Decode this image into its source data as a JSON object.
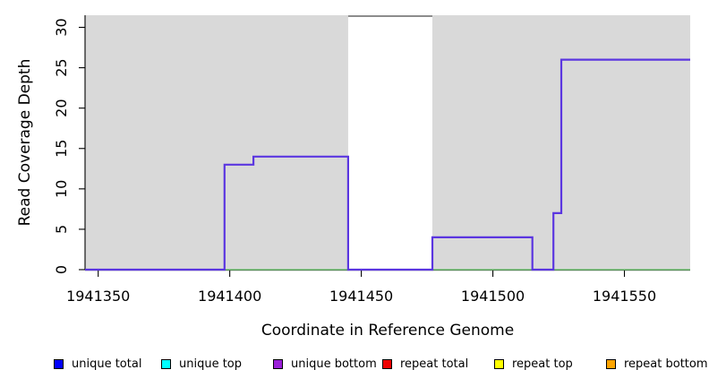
{
  "chart_data": {
    "type": "line",
    "subtype": "step-coverage",
    "title": "",
    "xlabel": "Coordinate in Reference Genome",
    "ylabel": "Read Coverage Depth",
    "xlim": [
      1941345,
      1941575
    ],
    "ylim": [
      0,
      31.5
    ],
    "grid": false,
    "x_ticks": [
      1941350,
      1941400,
      1941450,
      1941500,
      1941550
    ],
    "x_tick_labels": [
      "1941350",
      "1941400",
      "1941450",
      "1941500",
      "1941550"
    ],
    "y_ticks": [
      0,
      5,
      10,
      15,
      20,
      25,
      30
    ],
    "y_tick_labels": [
      "0",
      "5",
      "10",
      "15",
      "20",
      "25",
      "30"
    ],
    "plot_background_color": "#D9D9D9",
    "masked_region": {
      "range": [
        1941445,
        1941477
      ],
      "fill": "#FFFFFF",
      "cap_line_color": "#8C8C8C"
    },
    "unique_regions": [
      [
        1941345,
        1941445
      ],
      [
        1941477,
        1941575
      ]
    ],
    "series": [
      {
        "name": "zero-baseline",
        "color": "#74C476",
        "width": 1.4,
        "points": [
          [
            1941345,
            0
          ],
          [
            1941575,
            0
          ]
        ]
      },
      {
        "name": "coverage-step-line",
        "color": "#5B36E0",
        "width": 2.2,
        "points": [
          [
            1941345,
            0
          ],
          [
            1941398,
            0
          ],
          [
            1941398,
            13
          ],
          [
            1941409,
            13
          ],
          [
            1941409,
            14
          ],
          [
            1941445,
            14
          ],
          [
            1941445,
            0
          ],
          [
            1941477,
            0
          ],
          [
            1941477,
            4
          ],
          [
            1941515,
            4
          ],
          [
            1941515,
            0
          ],
          [
            1941523,
            0
          ],
          [
            1941523,
            7
          ],
          [
            1941526,
            7
          ],
          [
            1941526,
            26
          ],
          [
            1941575,
            26
          ]
        ]
      }
    ],
    "legend_position": "bottom",
    "legend": [
      {
        "label": "unique total",
        "color": "#0000FF"
      },
      {
        "label": "unique top",
        "color": "#00FFFF"
      },
      {
        "label": "unique bottom",
        "color": "#9B20D9"
      },
      {
        "label": "repeat total",
        "color": "#EE0000"
      },
      {
        "label": "repeat top",
        "color": "#FFFF00"
      },
      {
        "label": "repeat bottom",
        "color": "#FFA500"
      }
    ]
  },
  "colors": {
    "axis": "#000000",
    "tick_text": "#000000"
  }
}
